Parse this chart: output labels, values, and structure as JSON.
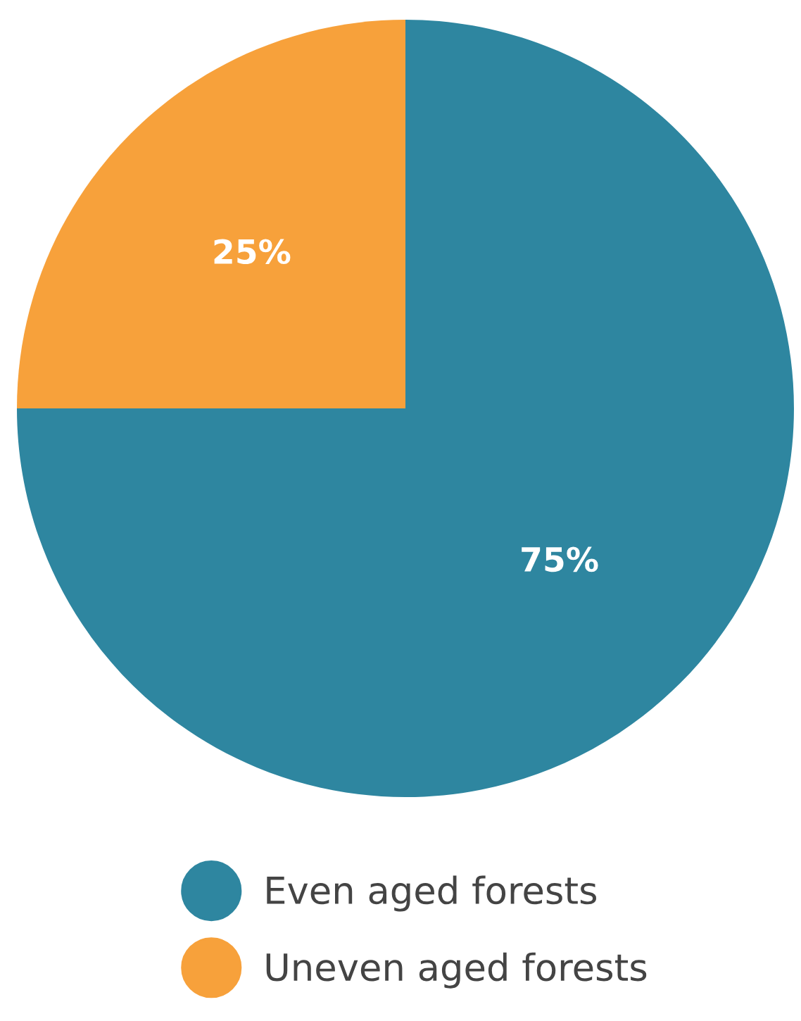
{
  "chart_data": {
    "type": "pie",
    "categories": [
      "Even aged forests",
      "Uneven aged forests"
    ],
    "values": [
      75,
      25
    ],
    "colors": [
      "#2e86a0",
      "#f7a13b"
    ],
    "value_labels": [
      "75%",
      "25%"
    ],
    "legend": "bottom"
  }
}
